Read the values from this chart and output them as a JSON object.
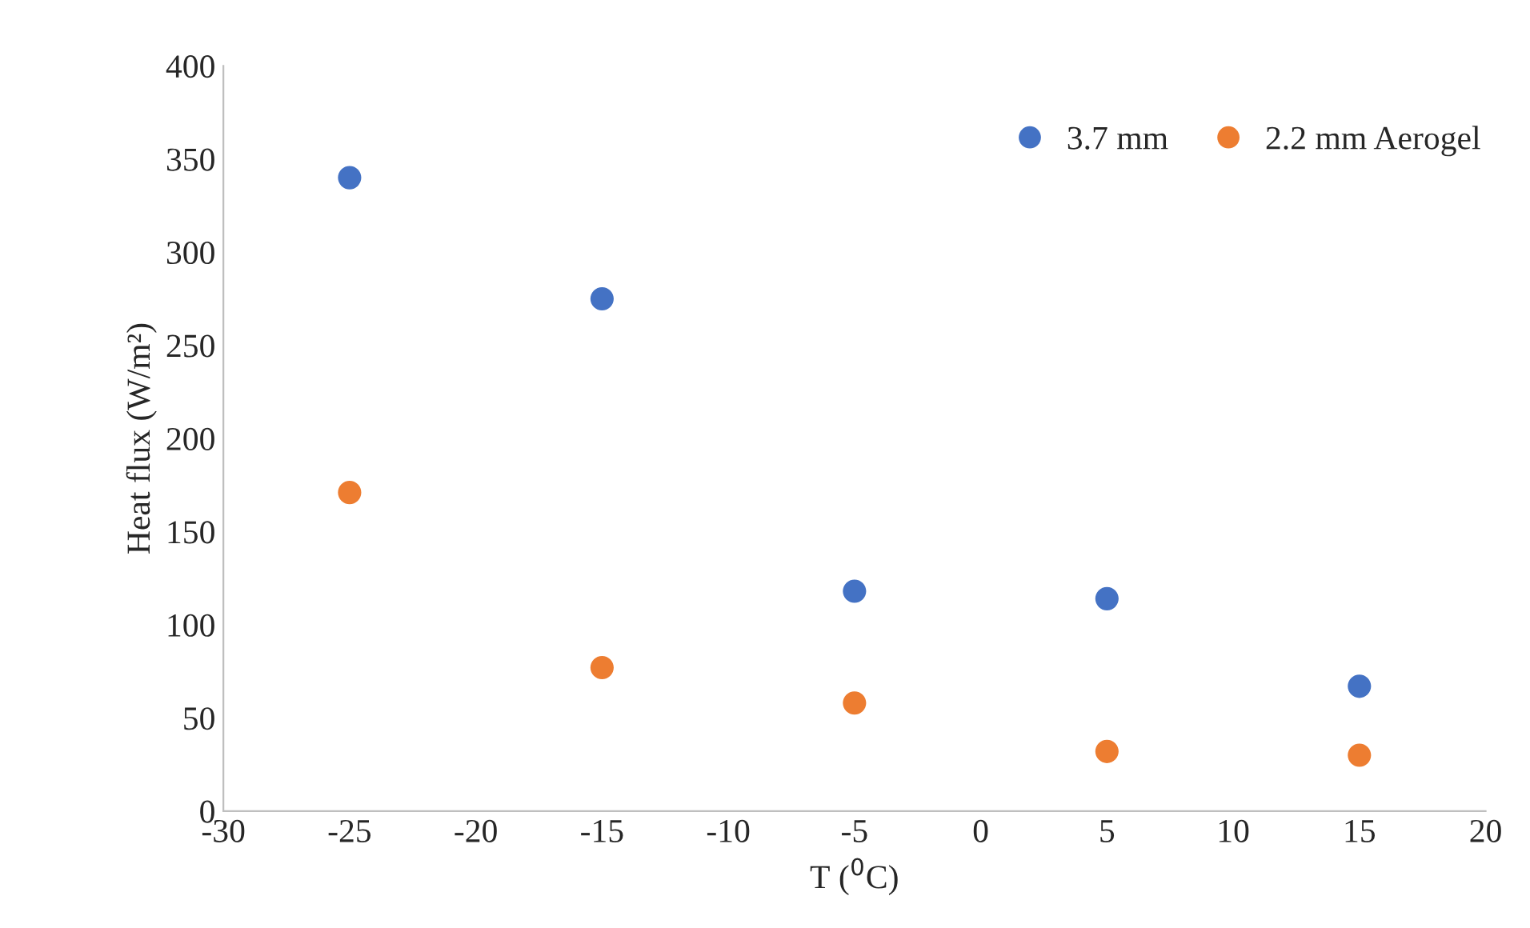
{
  "chart_data": {
    "type": "scatter",
    "xlabel": "T ($^{0}$C)",
    "ylabel": "Heat flux (W/m²)",
    "x": [
      -25,
      -15,
      -5,
      5,
      15
    ],
    "series": [
      {
        "name": "3.7 mm",
        "color": "#4472c4",
        "values": [
          340,
          275,
          118,
          114,
          67
        ]
      },
      {
        "name": "2.2 mm Aerogel",
        "color": "#ed7d31",
        "values": [
          171,
          77,
          58,
          32,
          30
        ]
      }
    ],
    "xlim": [
      -30,
      20
    ],
    "xticks": [
      -30,
      -25,
      -20,
      -15,
      -10,
      -5,
      0,
      5,
      10,
      15,
      20
    ],
    "ylim": [
      0,
      400
    ],
    "yticks": [
      0,
      50,
      100,
      150,
      200,
      250,
      300,
      350,
      400
    ],
    "grid": false,
    "legend": "top right",
    "marker": "circle"
  }
}
